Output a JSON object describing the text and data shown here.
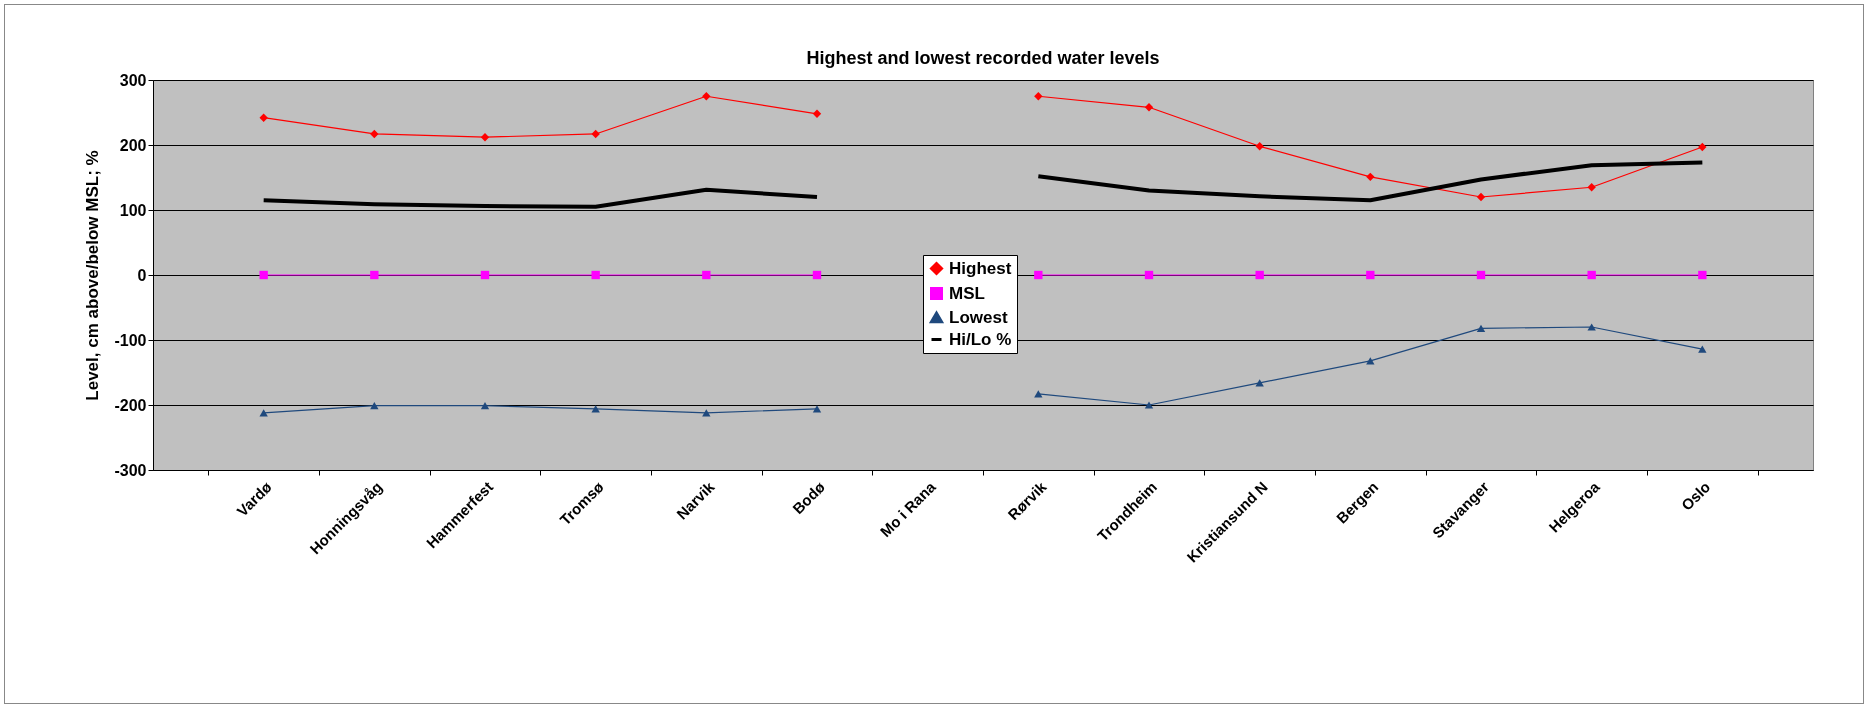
{
  "chart_data": {
    "type": "line",
    "title": "Highest and lowest recorded water levels",
    "ylabel": "Level, cm above/below MSL; %",
    "categories": [
      "Vardø",
      "Honningsvåg",
      "Hammerfest",
      "Tromsø",
      "Narvik",
      "Bodø",
      "Mo i Rana",
      "Rørvik",
      "Trondheim",
      "Kristiansund N",
      "Bergen",
      "Stavanger",
      "Helgeroa",
      "Oslo"
    ],
    "series": [
      {
        "name": "Highest",
        "color": "#ff0000",
        "marker": "diamond",
        "values": [
          242,
          217,
          212,
          217,
          275,
          248,
          null,
          275,
          258,
          198,
          151,
          120,
          135,
          197
        ]
      },
      {
        "name": "MSL",
        "color": "#ff00ff",
        "marker": "square",
        "values": [
          0,
          0,
          0,
          0,
          0,
          0,
          null,
          0,
          0,
          0,
          0,
          0,
          0,
          0
        ]
      },
      {
        "name": "Lowest",
        "color": "#1f497d",
        "marker": "triangle",
        "values": [
          -212,
          -201,
          -201,
          -206,
          -212,
          -206,
          null,
          -183,
          -200,
          -166,
          -132,
          -82,
          -80,
          -114
        ]
      },
      {
        "name": "Hi/Lo %",
        "color": "#000000",
        "marker": "none",
        "values": [
          115,
          109,
          106,
          105,
          131,
          120,
          null,
          152,
          130,
          121,
          115,
          147,
          169,
          173
        ]
      }
    ],
    "ylim": [
      -300,
      300
    ],
    "yticks": [
      -300,
      -200,
      -100,
      0,
      100,
      200,
      300
    ],
    "grid": "y",
    "legend": "center"
  }
}
